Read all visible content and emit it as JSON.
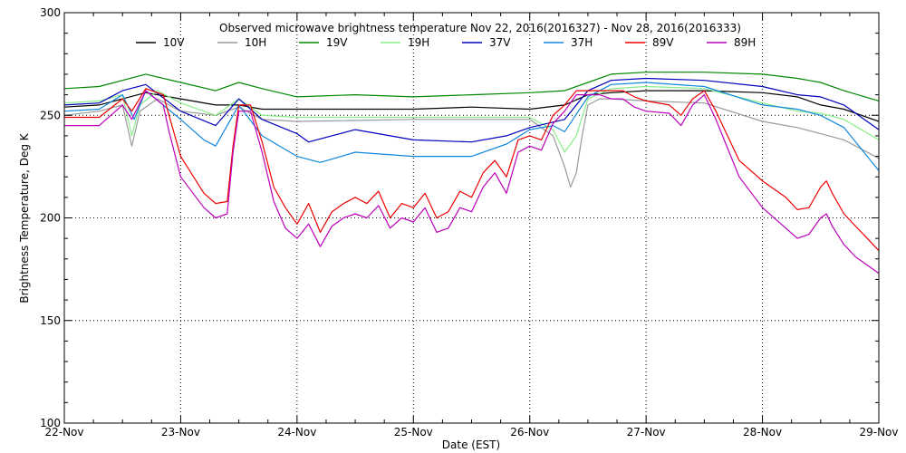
{
  "chart_data": {
    "type": "line",
    "title": "Observed microwave brightness temperature Nov 22, 2016(2016327) - Nov 28, 2016(2016333)",
    "xlabel": "Date (EST)",
    "ylabel": "Brightness Temperature, Deg K",
    "xlim": [
      0,
      7
    ],
    "ylim": [
      100,
      300
    ],
    "x_ticks": [
      {
        "value": 0,
        "label": "22-Nov"
      },
      {
        "value": 1,
        "label": "23-Nov"
      },
      {
        "value": 2,
        "label": "24-Nov"
      },
      {
        "value": 3,
        "label": "25-Nov"
      },
      {
        "value": 4,
        "label": "26-Nov"
      },
      {
        "value": 5,
        "label": "27-Nov"
      },
      {
        "value": 6,
        "label": "28-Nov"
      },
      {
        "value": 7,
        "label": "29-Nov"
      }
    ],
    "y_ticks": [
      {
        "value": 100,
        "label": "100"
      },
      {
        "value": 150,
        "label": "150"
      },
      {
        "value": 200,
        "label": "200"
      },
      {
        "value": 250,
        "label": "250"
      },
      {
        "value": 300,
        "label": "300"
      }
    ],
    "grid": "dotted",
    "legend": "top",
    "series": [
      {
        "name": "10V",
        "color": "#000000",
        "x": [
          0,
          0.3,
          0.5,
          0.7,
          1.0,
          1.3,
          1.5,
          1.7,
          2.0,
          2.5,
          3.0,
          3.5,
          4.0,
          4.3,
          4.5,
          4.7,
          5.0,
          5.5,
          6.0,
          6.3,
          6.5,
          6.7,
          7.0
        ],
        "values": [
          254,
          255,
          258,
          261,
          258,
          255,
          255,
          253,
          253,
          253,
          253,
          254,
          253,
          255,
          260,
          261,
          262,
          262,
          261,
          259,
          255,
          253,
          247
        ]
      },
      {
        "name": "10H",
        "color": "#999999",
        "x": [
          0,
          0.3,
          0.5,
          0.58,
          0.65,
          0.8,
          1.0,
          1.3,
          1.5,
          1.7,
          2.0,
          3.0,
          4.0,
          4.2,
          4.3,
          4.35,
          4.4,
          4.45,
          4.5,
          4.6,
          4.7,
          5.0,
          5.5,
          6.0,
          6.3,
          6.5,
          6.7,
          7.0
        ],
        "values": [
          250,
          252,
          255,
          235,
          252,
          258,
          252,
          250,
          254,
          248,
          247,
          248,
          248,
          240,
          225,
          215,
          222,
          240,
          255,
          258,
          258,
          257,
          256,
          247,
          244,
          241,
          238,
          229
        ]
      },
      {
        "name": "19V",
        "color": "#008800",
        "x": [
          0,
          0.3,
          0.5,
          0.7,
          1.0,
          1.3,
          1.5,
          1.7,
          2.0,
          2.5,
          3.0,
          3.5,
          4.0,
          4.3,
          4.5,
          4.7,
          5.0,
          5.5,
          6.0,
          6.3,
          6.5,
          6.7,
          7.0
        ],
        "values": [
          263,
          264,
          267,
          270,
          266,
          262,
          266,
          263,
          259,
          260,
          259,
          260,
          261,
          262,
          266,
          270,
          271,
          271,
          270,
          268,
          266,
          262,
          257
        ]
      },
      {
        "name": "19H",
        "color": "#88ee88",
        "x": [
          0,
          0.3,
          0.5,
          0.58,
          0.65,
          0.8,
          1.0,
          1.3,
          1.5,
          1.7,
          2.0,
          3.0,
          4.0,
          4.2,
          4.3,
          4.4,
          4.5,
          4.7,
          5.0,
          5.5,
          6.0,
          6.3,
          6.5,
          6.7,
          7.0
        ],
        "values": [
          256,
          257,
          260,
          240,
          255,
          262,
          256,
          250,
          258,
          250,
          249,
          249,
          249,
          243,
          232,
          240,
          258,
          263,
          264,
          263,
          256,
          252,
          251,
          248,
          238
        ]
      },
      {
        "name": "37V",
        "color": "#0000bb",
        "x": [
          0,
          0.3,
          0.5,
          0.7,
          1.0,
          1.3,
          1.5,
          1.7,
          2.0,
          2.1,
          2.5,
          3.0,
          3.5,
          3.8,
          4.0,
          4.3,
          4.5,
          4.7,
          5.0,
          5.5,
          6.0,
          6.3,
          6.5,
          6.7,
          7.0
        ],
        "values": [
          255,
          256,
          262,
          265,
          252,
          245,
          258,
          248,
          241,
          237,
          243,
          238,
          237,
          240,
          244,
          248,
          262,
          267,
          268,
          267,
          264,
          260,
          259,
          255,
          243
        ]
      },
      {
        "name": "37H",
        "color": "#1188dd",
        "x": [
          0,
          0.3,
          0.5,
          0.6,
          0.7,
          1.0,
          1.2,
          1.3,
          1.5,
          1.7,
          2.0,
          2.2,
          2.5,
          3.0,
          3.5,
          3.8,
          4.0,
          4.2,
          4.3,
          4.5,
          4.7,
          5.0,
          5.5,
          6.0,
          6.3,
          6.5,
          6.7,
          7.0
        ],
        "values": [
          252,
          253,
          260,
          248,
          262,
          248,
          238,
          235,
          255,
          240,
          230,
          227,
          232,
          230,
          230,
          236,
          243,
          245,
          242,
          259,
          265,
          266,
          264,
          255,
          253,
          250,
          244,
          223
        ]
      },
      {
        "name": "89V",
        "color": "#ee0000",
        "x": [
          0,
          0.3,
          0.5,
          0.58,
          0.7,
          0.85,
          0.9,
          1.0,
          1.2,
          1.3,
          1.4,
          1.45,
          1.5,
          1.6,
          1.7,
          1.8,
          1.9,
          2.0,
          2.1,
          2.2,
          2.3,
          2.4,
          2.5,
          2.6,
          2.7,
          2.8,
          2.9,
          3.0,
          3.1,
          3.2,
          3.3,
          3.4,
          3.5,
          3.6,
          3.7,
          3.8,
          3.9,
          4.0,
          4.1,
          4.2,
          4.3,
          4.4,
          4.5,
          4.6,
          4.7,
          4.8,
          4.9,
          5.0,
          5.2,
          5.3,
          5.4,
          5.5,
          5.6,
          5.7,
          5.8,
          6.0,
          6.2,
          6.3,
          6.4,
          6.5,
          6.55,
          6.6,
          6.7,
          6.8,
          6.9,
          7.0
        ],
        "values": [
          249,
          249,
          258,
          252,
          263,
          260,
          250,
          230,
          212,
          207,
          208,
          235,
          255,
          255,
          237,
          215,
          205,
          197,
          207,
          193,
          203,
          207,
          210,
          207,
          213,
          200,
          207,
          205,
          212,
          200,
          203,
          213,
          210,
          222,
          228,
          220,
          238,
          240,
          238,
          250,
          255,
          262,
          262,
          262,
          262,
          262,
          259,
          257,
          255,
          250,
          258,
          262,
          252,
          240,
          228,
          218,
          210,
          204,
          205,
          215,
          218,
          212,
          202,
          196,
          190,
          184
        ]
      },
      {
        "name": "89H",
        "color": "#bb00bb",
        "x": [
          0,
          0.3,
          0.5,
          0.58,
          0.7,
          0.85,
          0.9,
          1.0,
          1.2,
          1.3,
          1.4,
          1.45,
          1.5,
          1.6,
          1.7,
          1.8,
          1.9,
          2.0,
          2.1,
          2.2,
          2.3,
          2.4,
          2.5,
          2.6,
          2.7,
          2.8,
          2.9,
          3.0,
          3.1,
          3.2,
          3.3,
          3.4,
          3.5,
          3.6,
          3.7,
          3.8,
          3.9,
          4.0,
          4.1,
          4.2,
          4.3,
          4.4,
          4.5,
          4.6,
          4.7,
          4.8,
          4.9,
          5.0,
          5.2,
          5.3,
          5.4,
          5.5,
          5.6,
          5.7,
          5.8,
          6.0,
          6.2,
          6.3,
          6.4,
          6.5,
          6.55,
          6.6,
          6.7,
          6.8,
          6.9,
          7.0
        ],
        "values": [
          245,
          245,
          255,
          248,
          262,
          255,
          242,
          220,
          205,
          200,
          202,
          232,
          252,
          252,
          232,
          208,
          195,
          190,
          197,
          186,
          196,
          200,
          202,
          200,
          206,
          195,
          200,
          198,
          205,
          193,
          195,
          205,
          203,
          215,
          222,
          212,
          232,
          235,
          233,
          246,
          252,
          260,
          260,
          260,
          258,
          258,
          254,
          252,
          251,
          245,
          255,
          260,
          248,
          234,
          220,
          205,
          195,
          190,
          192,
          200,
          202,
          196,
          187,
          181,
          177,
          173
        ]
      }
    ]
  }
}
